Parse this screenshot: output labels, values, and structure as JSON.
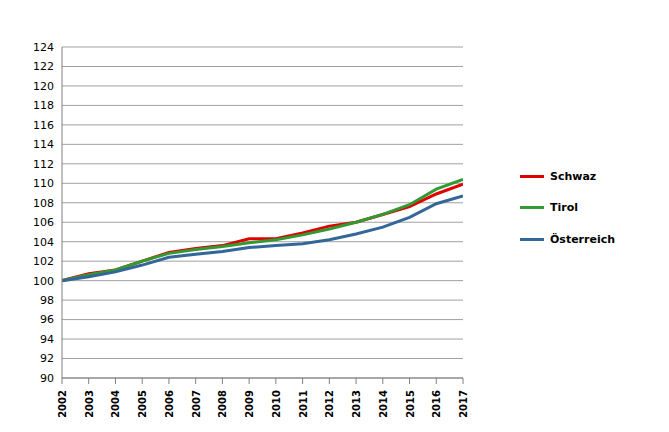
{
  "chart_data": {
    "type": "line",
    "x": [
      2002,
      2003,
      2004,
      2005,
      2006,
      2007,
      2008,
      2009,
      2010,
      2011,
      2012,
      2013,
      2014,
      2015,
      2016,
      2017
    ],
    "series": [
      {
        "name": "Schwaz",
        "color": "#e00000",
        "values": [
          100,
          100.7,
          101.1,
          102.0,
          102.9,
          103.3,
          103.6,
          104.3,
          104.3,
          104.9,
          105.6,
          106.0,
          106.8,
          107.6,
          108.9,
          109.9
        ]
      },
      {
        "name": "Tirol",
        "color": "#339933",
        "values": [
          100,
          100.6,
          101.1,
          102.0,
          102.8,
          103.2,
          103.5,
          103.9,
          104.2,
          104.7,
          105.3,
          106.0,
          106.8,
          107.8,
          109.4,
          110.4
        ]
      },
      {
        "name": "Österreich",
        "color": "#336699",
        "values": [
          100,
          100.4,
          100.9,
          101.6,
          102.4,
          102.7,
          103.0,
          103.4,
          103.6,
          103.8,
          104.2,
          104.8,
          105.5,
          106.5,
          107.9,
          108.7
        ]
      }
    ],
    "xlim": [
      2002,
      2017
    ],
    "xticks": [
      2002,
      2003,
      2004,
      2005,
      2006,
      2007,
      2008,
      2009,
      2010,
      2011,
      2012,
      2013,
      2014,
      2015,
      2016,
      2017
    ],
    "ylim": [
      90,
      124
    ],
    "yticks": [
      90,
      92,
      94,
      96,
      98,
      100,
      102,
      104,
      106,
      108,
      110,
      112,
      114,
      116,
      118,
      120,
      122,
      124
    ],
    "grid": true,
    "legend": "right"
  }
}
